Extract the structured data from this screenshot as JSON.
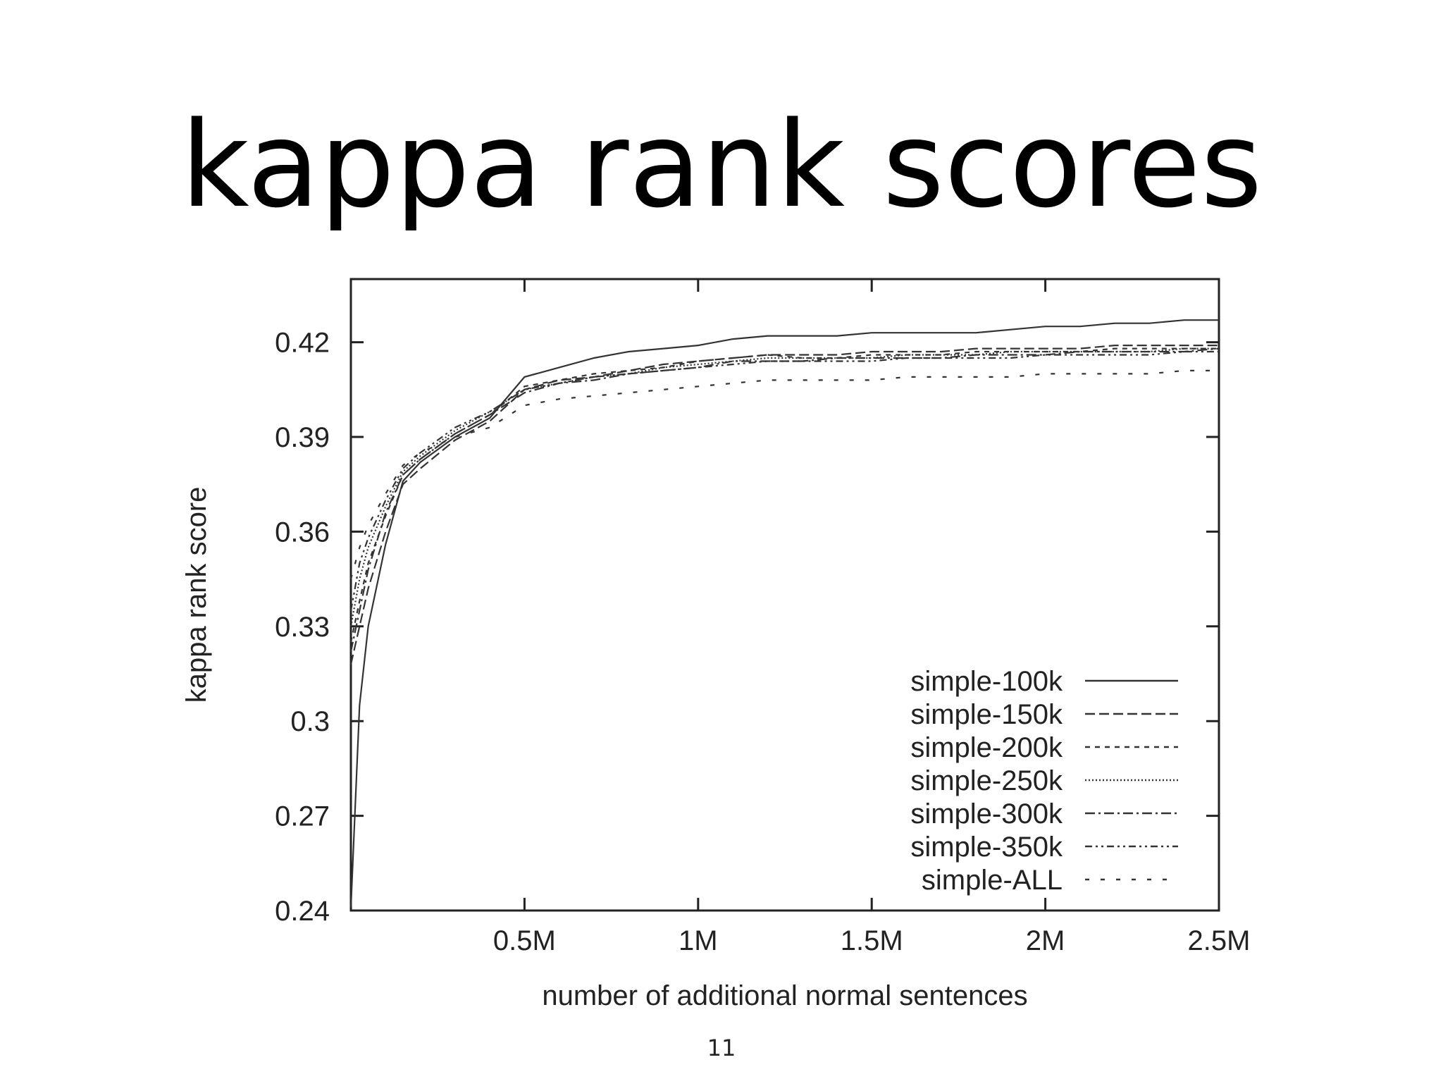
{
  "slide": {
    "title": "kappa rank scores",
    "page_number": "11"
  },
  "chart_data": {
    "type": "line",
    "xlabel": "number of additional normal sentences",
    "ylabel": "kappa rank score",
    "xlim": [
      0,
      2500000
    ],
    "ylim": [
      0.24,
      0.44
    ],
    "x_ticks": [
      {
        "value": 500000,
        "label": "0.5M"
      },
      {
        "value": 1000000,
        "label": "1M"
      },
      {
        "value": 1500000,
        "label": "1.5M"
      },
      {
        "value": 2000000,
        "label": "2M"
      },
      {
        "value": 2500000,
        "label": "2.5M"
      }
    ],
    "y_ticks": [
      {
        "value": 0.24,
        "label": "0.24"
      },
      {
        "value": 0.27,
        "label": "0.27"
      },
      {
        "value": 0.3,
        "label": "0.3"
      },
      {
        "value": 0.33,
        "label": "0.33"
      },
      {
        "value": 0.36,
        "label": "0.36"
      },
      {
        "value": 0.39,
        "label": "0.39"
      },
      {
        "value": 0.42,
        "label": "0.42"
      }
    ],
    "x": [
      0,
      25000,
      50000,
      100000,
      150000,
      200000,
      300000,
      400000,
      500000,
      600000,
      700000,
      800000,
      900000,
      1000000,
      1100000,
      1200000,
      1300000,
      1400000,
      1500000,
      1600000,
      1700000,
      1800000,
      1900000,
      2000000,
      2100000,
      2200000,
      2300000,
      2400000,
      2500000
    ],
    "grid": false,
    "legend": "bottom-right",
    "series": [
      {
        "name": "simple-100k",
        "dash": "solid",
        "values": [
          0.241,
          0.305,
          0.33,
          0.356,
          0.376,
          0.382,
          0.39,
          0.396,
          0.409,
          0.412,
          0.415,
          0.417,
          0.418,
          0.419,
          0.421,
          0.422,
          0.422,
          0.422,
          0.423,
          0.423,
          0.423,
          0.423,
          0.424,
          0.425,
          0.425,
          0.426,
          0.426,
          0.427,
          0.427
        ]
      },
      {
        "name": "simple-150k",
        "dash": "dashed",
        "values": [
          0.318,
          0.33,
          0.342,
          0.36,
          0.375,
          0.38,
          0.389,
          0.395,
          0.405,
          0.408,
          0.409,
          0.411,
          0.413,
          0.414,
          0.415,
          0.416,
          0.416,
          0.416,
          0.417,
          0.417,
          0.417,
          0.418,
          0.418,
          0.418,
          0.418,
          0.419,
          0.419,
          0.419,
          0.419
        ]
      },
      {
        "name": "simple-200k",
        "dash": "short-dashed",
        "values": [
          0.325,
          0.338,
          0.35,
          0.365,
          0.378,
          0.383,
          0.391,
          0.397,
          0.406,
          0.408,
          0.41,
          0.411,
          0.412,
          0.414,
          0.415,
          0.416,
          0.415,
          0.415,
          0.416,
          0.416,
          0.416,
          0.417,
          0.417,
          0.417,
          0.417,
          0.418,
          0.418,
          0.418,
          0.418
        ]
      },
      {
        "name": "simple-250k",
        "dash": "dotted",
        "values": [
          0.33,
          0.345,
          0.355,
          0.368,
          0.379,
          0.384,
          0.392,
          0.398,
          0.405,
          0.407,
          0.409,
          0.41,
          0.412,
          0.413,
          0.414,
          0.415,
          0.415,
          0.415,
          0.415,
          0.416,
          0.416,
          0.416,
          0.417,
          0.417,
          0.417,
          0.417,
          0.417,
          0.418,
          0.418
        ]
      },
      {
        "name": "simple-300k",
        "dash": "dash-dot",
        "values": [
          0.322,
          0.335,
          0.348,
          0.366,
          0.378,
          0.383,
          0.391,
          0.397,
          0.404,
          0.407,
          0.408,
          0.41,
          0.411,
          0.412,
          0.414,
          0.414,
          0.414,
          0.415,
          0.415,
          0.415,
          0.415,
          0.416,
          0.416,
          0.416,
          0.417,
          0.417,
          0.417,
          0.417,
          0.418
        ]
      },
      {
        "name": "simple-350k",
        "dash": "dash-dot-dot",
        "values": [
          0.335,
          0.35,
          0.358,
          0.37,
          0.38,
          0.385,
          0.393,
          0.398,
          0.405,
          0.407,
          0.409,
          0.41,
          0.411,
          0.412,
          0.413,
          0.414,
          0.414,
          0.414,
          0.414,
          0.415,
          0.415,
          0.415,
          0.415,
          0.416,
          0.416,
          0.416,
          0.416,
          0.417,
          0.417
        ]
      },
      {
        "name": "simple-ALL",
        "dash": "sparse-dashed",
        "values": [
          0.345,
          0.355,
          0.362,
          0.372,
          0.381,
          0.385,
          0.39,
          0.393,
          0.4,
          0.402,
          0.403,
          0.404,
          0.405,
          0.406,
          0.407,
          0.408,
          0.408,
          0.408,
          0.408,
          0.409,
          0.409,
          0.409,
          0.409,
          0.41,
          0.41,
          0.41,
          0.41,
          0.411,
          0.411
        ]
      }
    ]
  }
}
